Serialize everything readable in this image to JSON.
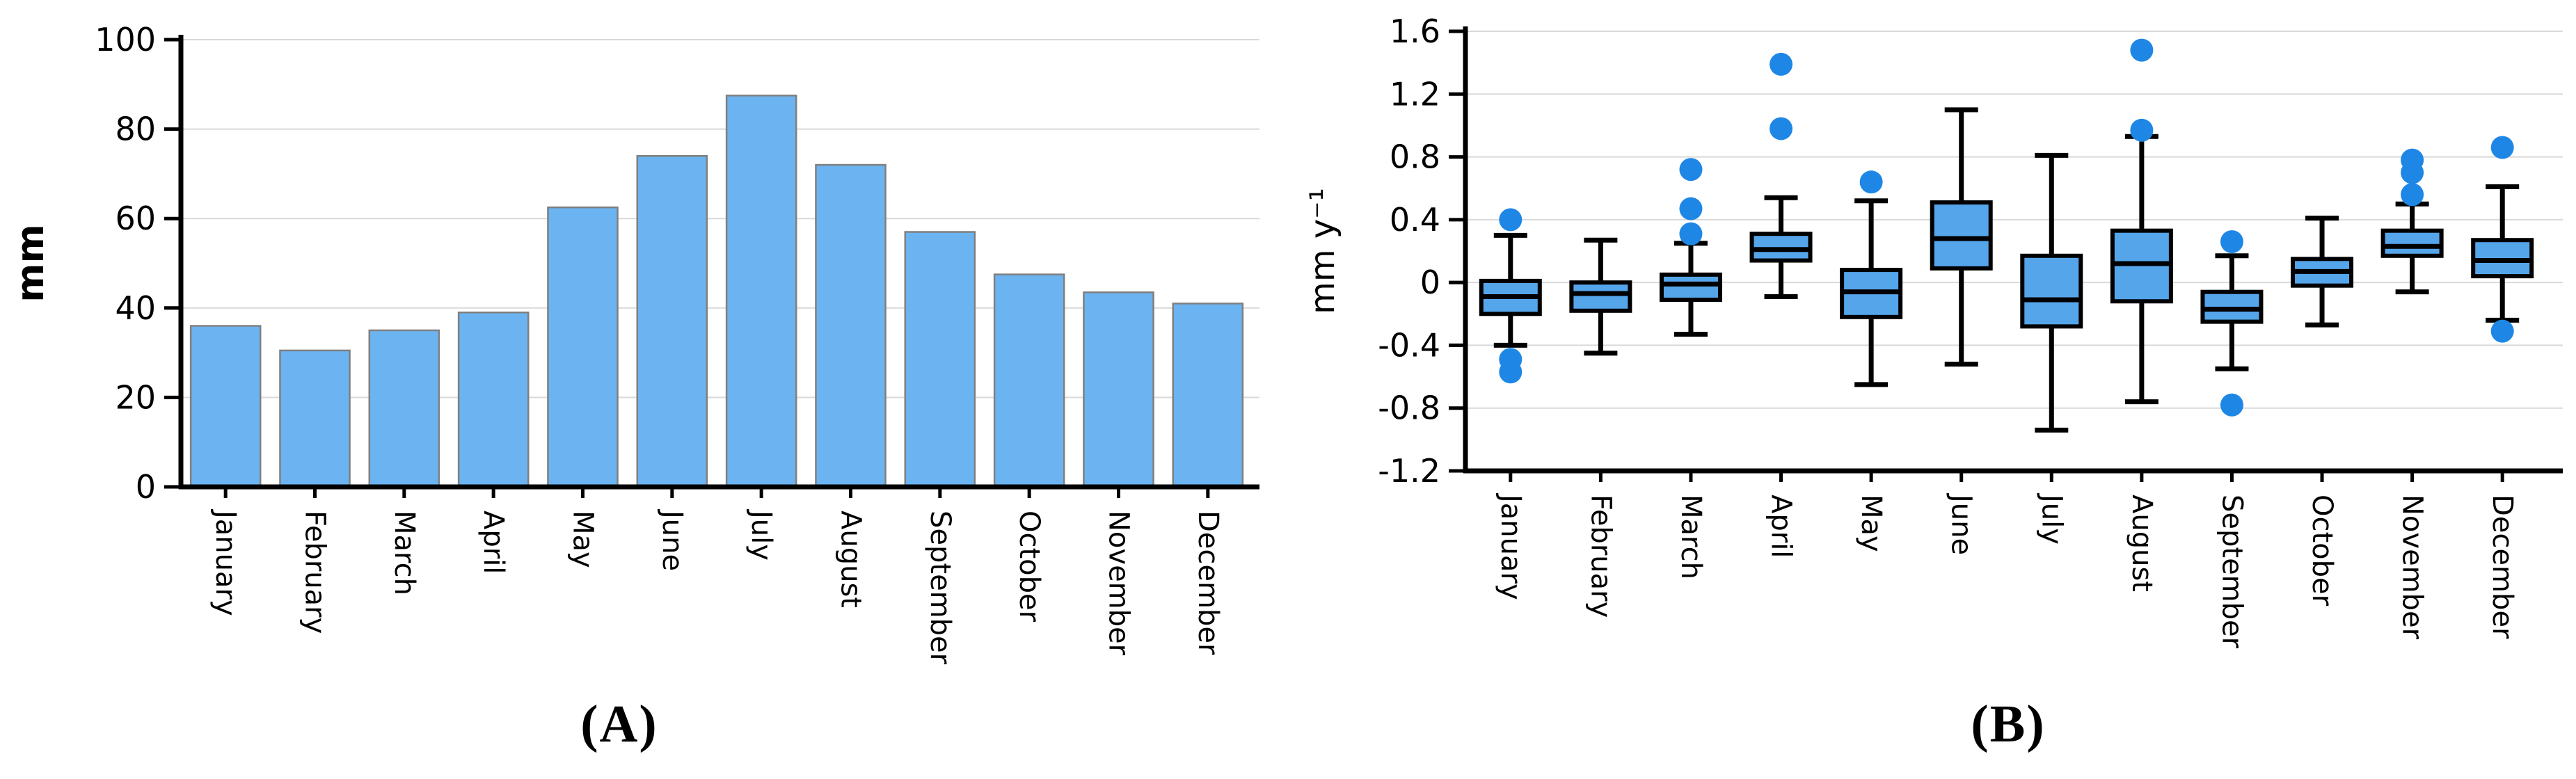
{
  "figure": {
    "background": "#FFFFFF",
    "caption_a": "(A)",
    "caption_b": "(B)"
  },
  "chart_data": [
    {
      "panel": "A",
      "type": "bar",
      "caption": "(A)",
      "title": "",
      "xlabel": "",
      "ylabel": "mm",
      "ylim": [
        0,
        100
      ],
      "grid": true,
      "ytick_values": [
        100,
        80,
        60,
        40,
        20,
        0
      ],
      "ytick_labels": [
        "100",
        "80",
        "60",
        "40",
        "20",
        "0"
      ],
      "categories": [
        "January",
        "February",
        "March",
        "April",
        "May",
        "June",
        "July",
        "August",
        "September",
        "October",
        "November",
        "December"
      ],
      "values": [
        36,
        30.5,
        35,
        39,
        62.5,
        74,
        87.5,
        72,
        57,
        47.5,
        43.5,
        41
      ],
      "style": {
        "bar_fill": "#6CB4F1",
        "bar_stroke": "#7F7F7F",
        "gridline": "#D9D9D9",
        "axis": "#000000"
      }
    },
    {
      "panel": "B",
      "type": "boxplot",
      "caption": "(B)",
      "title": "",
      "xlabel": "",
      "ylabel": "mm y⁻¹",
      "ylim": [
        -1.2,
        1.6
      ],
      "grid": true,
      "ytick_values": [
        1.6,
        1.2,
        0.8,
        0.4,
        0,
        -0.4,
        -0.8,
        -1.2
      ],
      "ytick_labels": [
        "1.6",
        "1.2",
        "0.8",
        "0.4",
        "0",
        "-0.4",
        "-0.8",
        "-1.2"
      ],
      "categories": [
        "January",
        "February",
        "March",
        "April",
        "May",
        "June",
        "July",
        "August",
        "September",
        "October",
        "November",
        "December"
      ],
      "series": [
        {
          "month": "January",
          "low": -0.4,
          "q1": -0.2,
          "median": -0.09,
          "q3": 0.01,
          "high": 0.3,
          "outliers": [
            0.4,
            -0.49,
            -0.57
          ]
        },
        {
          "month": "February",
          "low": -0.45,
          "q1": -0.18,
          "median": -0.07,
          "q3": 0.0,
          "high": 0.27,
          "outliers": []
        },
        {
          "month": "March",
          "low": -0.33,
          "q1": -0.11,
          "median": -0.01,
          "q3": 0.05,
          "high": 0.25,
          "outliers": [
            0.72,
            0.47,
            0.31
          ]
        },
        {
          "month": "April",
          "low": -0.09,
          "q1": 0.14,
          "median": 0.21,
          "q3": 0.31,
          "high": 0.54,
          "outliers": [
            1.39,
            0.98
          ]
        },
        {
          "month": "May",
          "low": -0.65,
          "q1": -0.22,
          "median": -0.06,
          "q3": 0.08,
          "high": 0.52,
          "outliers": [
            0.64
          ]
        },
        {
          "month": "June",
          "low": -0.52,
          "q1": 0.09,
          "median": 0.28,
          "q3": 0.51,
          "high": 1.1,
          "outliers": []
        },
        {
          "month": "July",
          "low": -0.94,
          "q1": -0.28,
          "median": -0.11,
          "q3": 0.17,
          "high": 0.81,
          "outliers": []
        },
        {
          "month": "August",
          "low": -0.76,
          "q1": -0.12,
          "median": 0.12,
          "q3": 0.33,
          "high": 0.93,
          "outliers": [
            1.48,
            0.97
          ]
        },
        {
          "month": "September",
          "low": -0.55,
          "q1": -0.25,
          "median": -0.17,
          "q3": -0.06,
          "high": 0.17,
          "outliers": [
            0.26,
            -0.78
          ]
        },
        {
          "month": "October",
          "low": -0.27,
          "q1": -0.02,
          "median": 0.07,
          "q3": 0.15,
          "high": 0.41,
          "outliers": []
        },
        {
          "month": "November",
          "low": -0.06,
          "q1": 0.17,
          "median": 0.23,
          "q3": 0.33,
          "high": 0.5,
          "outliers": [
            0.78,
            0.7,
            0.56
          ]
        },
        {
          "month": "December",
          "low": -0.24,
          "q1": 0.04,
          "median": 0.14,
          "q3": 0.27,
          "high": 0.61,
          "outliers": [
            0.86,
            -0.31
          ]
        }
      ],
      "style": {
        "box_fill": "#55A5EB",
        "box_stroke": "#000000",
        "whisker": "#000000",
        "outlier_fill": "#1E87E6",
        "gridline": "#D9D9D9",
        "axis": "#000000"
      }
    }
  ]
}
